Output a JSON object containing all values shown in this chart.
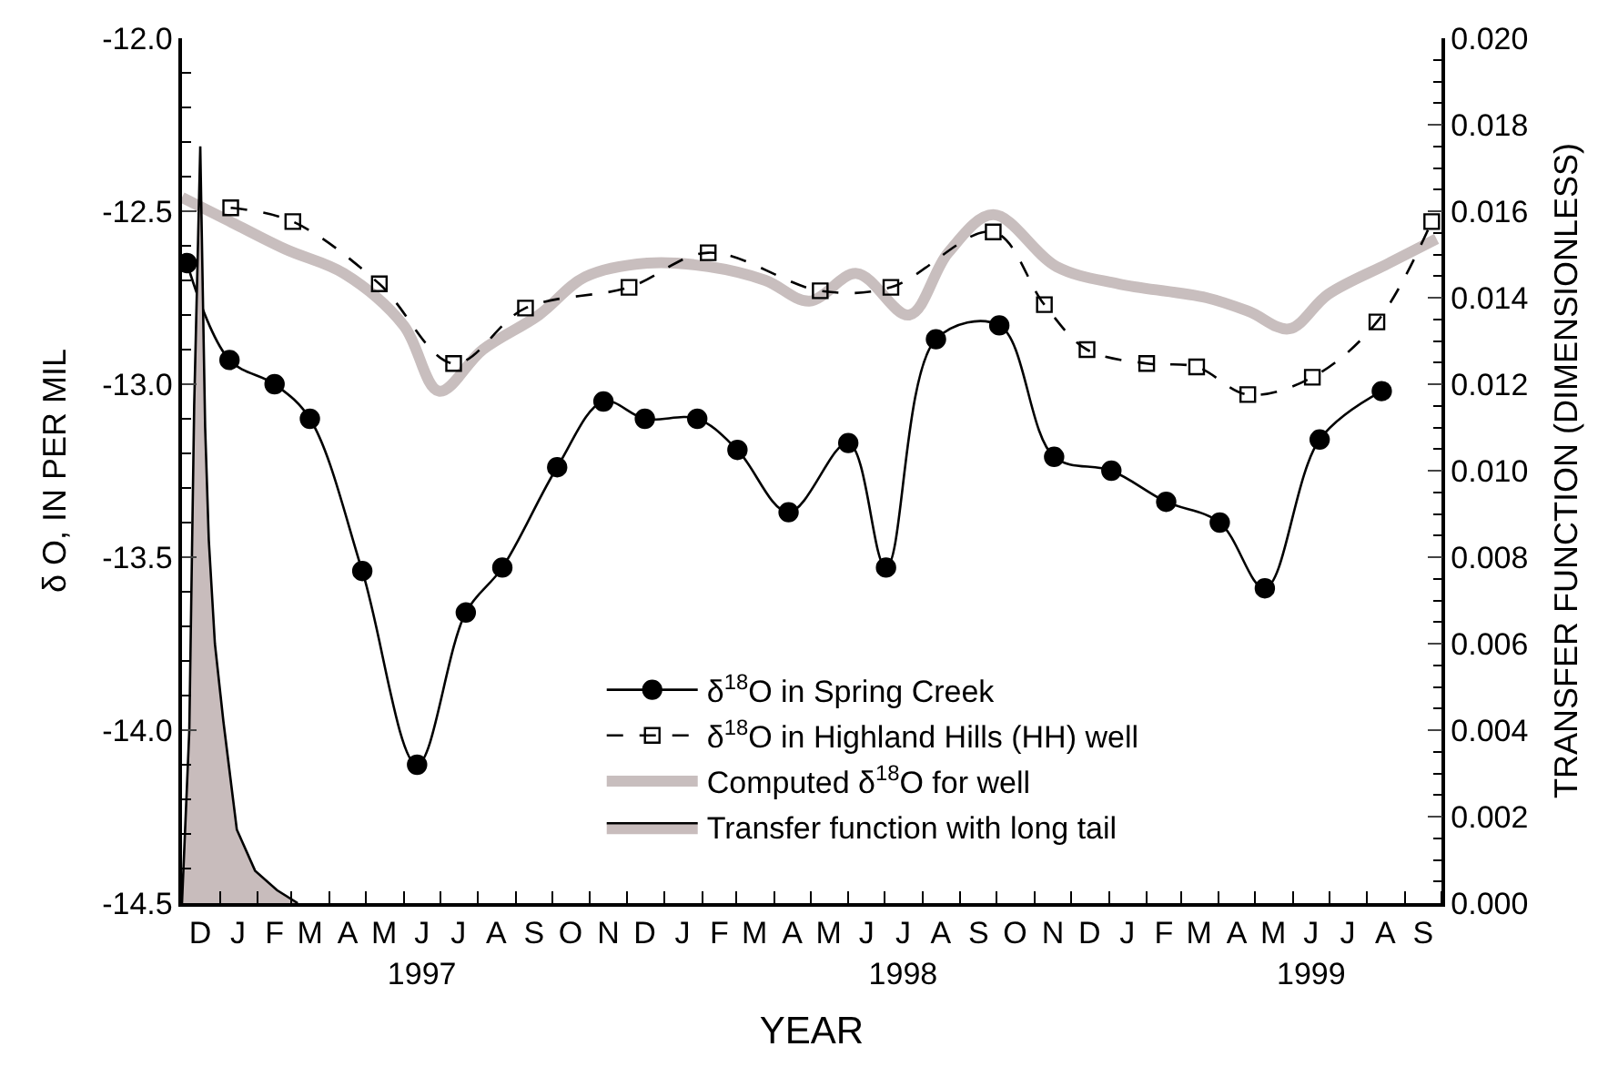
{
  "chart_data": {
    "type": "line",
    "xlabel": "YEAR",
    "ylabel": "δ O, IN PER MIL",
    "y2label": "TRANSFER FUNCTION (DIMENSIONLESS)",
    "xlim": [
      "1996-12-01",
      "1999-10-01"
    ],
    "xticks": [
      {
        "value": "1996-12-01",
        "label": null
      },
      {
        "value": "1996-12-16",
        "label": "D"
      },
      {
        "value": "1997-01-01",
        "label": null
      },
      {
        "value": "1997-01-16",
        "label": "J"
      },
      {
        "value": "1997-02-01",
        "label": null
      },
      {
        "value": "1997-02-15",
        "label": "F"
      },
      {
        "value": "1997-03-01",
        "label": null
      },
      {
        "value": "1997-03-16",
        "label": "M"
      },
      {
        "value": "1997-04-01",
        "label": null
      },
      {
        "value": "1997-04-16",
        "label": "A"
      },
      {
        "value": "1997-05-01",
        "label": null
      },
      {
        "value": "1997-05-16",
        "label": "M"
      },
      {
        "value": "1997-06-01",
        "label": null
      },
      {
        "value": "1997-06-16",
        "label": "J\n1997"
      },
      {
        "value": "1997-07-01",
        "label": null
      },
      {
        "value": "1997-07-16",
        "label": "J"
      },
      {
        "value": "1997-08-01",
        "label": null
      },
      {
        "value": "1997-08-16",
        "label": "A"
      },
      {
        "value": "1997-09-01",
        "label": null
      },
      {
        "value": "1997-09-16",
        "label": "S"
      },
      {
        "value": "1997-10-01",
        "label": null
      },
      {
        "value": "1997-10-16",
        "label": "O"
      },
      {
        "value": "1997-11-01",
        "label": null
      },
      {
        "value": "1997-11-16",
        "label": "N"
      },
      {
        "value": "1997-12-01",
        "label": null
      },
      {
        "value": "1997-12-16",
        "label": "D"
      },
      {
        "value": "1998-01-01",
        "label": null
      },
      {
        "value": "1998-01-16",
        "label": "J"
      },
      {
        "value": "1998-02-01",
        "label": null
      },
      {
        "value": "1998-02-15",
        "label": "F"
      },
      {
        "value": "1998-03-01",
        "label": null
      },
      {
        "value": "1998-03-16",
        "label": "M"
      },
      {
        "value": "1998-04-01",
        "label": null
      },
      {
        "value": "1998-04-16",
        "label": "A"
      },
      {
        "value": "1998-05-01",
        "label": null
      },
      {
        "value": "1998-05-16",
        "label": "M"
      },
      {
        "value": "1998-06-01",
        "label": null
      },
      {
        "value": "1998-06-16",
        "label": "J"
      },
      {
        "value": "1998-07-01",
        "label": null
      },
      {
        "value": "1998-07-16",
        "label": "J\n1998"
      },
      {
        "value": "1998-08-01",
        "label": null
      },
      {
        "value": "1998-08-16",
        "label": "A"
      },
      {
        "value": "1998-09-01",
        "label": null
      },
      {
        "value": "1998-09-16",
        "label": "S"
      },
      {
        "value": "1998-10-01",
        "label": null
      },
      {
        "value": "1998-10-16",
        "label": "O"
      },
      {
        "value": "1998-11-01",
        "label": null
      },
      {
        "value": "1998-11-16",
        "label": "N"
      },
      {
        "value": "1998-12-01",
        "label": null
      },
      {
        "value": "1998-12-16",
        "label": "D"
      },
      {
        "value": "1999-01-01",
        "label": null
      },
      {
        "value": "1999-01-16",
        "label": "J"
      },
      {
        "value": "1999-02-01",
        "label": null
      },
      {
        "value": "1999-02-15",
        "label": "F"
      },
      {
        "value": "1999-03-01",
        "label": null
      },
      {
        "value": "1999-03-16",
        "label": "M"
      },
      {
        "value": "1999-04-01",
        "label": null
      },
      {
        "value": "1999-04-16",
        "label": "A"
      },
      {
        "value": "1999-05-01",
        "label": null
      },
      {
        "value": "1999-05-16",
        "label": "M"
      },
      {
        "value": "1999-06-01",
        "label": null
      },
      {
        "value": "1999-06-16",
        "label": "J\n1999"
      },
      {
        "value": "1999-07-01",
        "label": null
      },
      {
        "value": "1999-07-16",
        "label": "J"
      },
      {
        "value": "1999-08-01",
        "label": null
      },
      {
        "value": "1999-08-16",
        "label": "A"
      },
      {
        "value": "1999-09-01",
        "label": null
      },
      {
        "value": "1999-09-16",
        "label": "S"
      },
      {
        "value": "1999-10-01",
        "label": null
      }
    ],
    "ylim": [
      -14.5,
      -12.0
    ],
    "yticks": [
      {
        "value": -14.5,
        "label": "-14.5"
      },
      {
        "value": -14.0,
        "label": "-14.0"
      },
      -13.5,
      {
        "value": -13.0,
        "label": "-13.0"
      },
      -12.5,
      {
        "value": -12.0,
        "label": "-12.0"
      }
    ],
    "y2lim": [
      0,
      0.02
    ],
    "y2ticks": [
      {
        "value": 0,
        "label": "0.000"
      },
      0.002,
      0.004,
      0.006,
      0.008,
      {
        "value": 0.01,
        "label": "0.010"
      },
      0.012,
      0.014,
      0.016,
      0.018,
      {
        "value": 0.02,
        "label": "0.020"
      }
    ],
    "legend": "bottom",
    "series": [
      {
        "name": "δ$^{18}$O in Spring Creek",
        "color": "#000000",
        "marker": "circle",
        "line_style": "solid",
        "x": [
          "1996-12-05",
          "1997-01-09",
          "1997-02-15",
          "1997-03-16",
          "1997-04-28",
          "1997-06-12",
          "1997-07-22",
          "1997-08-21",
          "1997-10-05",
          "1997-11-12",
          "1997-12-16",
          "1998-01-28",
          "1998-03-02",
          "1998-04-13",
          "1998-06-01",
          "1998-07-02",
          "1998-08-12",
          "1998-10-03",
          "1998-11-17",
          "1999-01-03",
          "1999-02-17",
          "1999-04-02",
          "1999-05-09",
          "1999-06-23",
          "1999-08-13"
        ],
        "values": [
          -12.65,
          -12.93,
          -13.0,
          -13.1,
          -13.54,
          -14.1,
          -13.66,
          -13.53,
          -13.24,
          -13.05,
          -13.1,
          -13.1,
          -13.19,
          -13.37,
          -13.17,
          -13.53,
          -12.87,
          -12.83,
          -13.21,
          -13.25,
          -13.34,
          -13.4,
          -13.59,
          -13.16,
          -13.02
        ]
      },
      {
        "name": "δ$^{18}$O in Highland Hills (HH) well",
        "color": "#000000",
        "marker": "square",
        "line_style": "dashed",
        "x": [
          "1997-01-10",
          "1997-03-02",
          "1997-05-12",
          "1997-07-12",
          "1997-09-09",
          "1997-12-03",
          "1998-02-06",
          "1998-05-09",
          "1998-07-06",
          "1998-09-28",
          "1998-11-09",
          "1998-12-14",
          "1999-02-01",
          "1999-03-14",
          "1999-04-25",
          "1999-06-17",
          "1999-08-09",
          "1999-09-23"
        ],
        "values": [
          -12.49,
          -12.53,
          -12.71,
          -12.94,
          -12.78,
          -12.72,
          -12.62,
          -12.73,
          -12.72,
          -12.56,
          -12.77,
          -12.9,
          -12.94,
          -12.95,
          -13.03,
          -12.98,
          -12.82,
          -12.53
        ]
      },
      {
        "name": "Computed δ$^{18}$O for well",
        "color": "#c8bebe",
        "marker": "none",
        "line_style": "solid",
        "x": [
          "1996-12-01",
          "1997-01-04",
          "1997-02-24",
          "1997-04-13",
          "1997-06-01",
          "1997-06-30",
          "1997-08-05",
          "1997-09-20",
          "1997-10-28",
          "1997-12-18",
          "1998-02-06",
          "1998-03-25",
          "1998-04-30",
          "1998-06-08",
          "1998-07-21",
          "1998-08-22",
          "1998-09-28",
          "1998-11-19",
          "1999-01-09",
          "1999-03-22",
          "1999-04-26",
          "1999-05-29",
          "1999-06-30",
          "1999-08-19",
          "1999-09-27"
        ],
        "values": [
          -12.46,
          -12.52,
          -12.61,
          -12.68,
          -12.83,
          -13.02,
          -12.9,
          -12.8,
          -12.69,
          -12.65,
          -12.66,
          -12.7,
          -12.76,
          -12.68,
          -12.8,
          -12.62,
          -12.51,
          -12.66,
          -12.71,
          -12.75,
          -12.79,
          -12.84,
          -12.74,
          -12.65,
          -12.58
        ]
      },
      {
        "name": "Transfer function with long tail",
        "type": "area",
        "axis": "y2",
        "color": "#c8bcbc",
        "x": [
          "1996-12-01",
          "1996-12-07",
          "1996-12-11",
          "1996-12-16",
          "1996-12-20",
          "1996-12-23",
          "1996-12-28",
          "1997-01-04",
          "1997-01-15",
          "1997-01-30",
          "1997-02-17",
          "1997-03-06"
        ],
        "values": [
          0,
          0.004,
          0.0115,
          0.0175,
          0.011,
          0.0084,
          0.006,
          0.0042,
          0.0017,
          0.00075,
          0.0003,
          0
        ]
      }
    ]
  }
}
